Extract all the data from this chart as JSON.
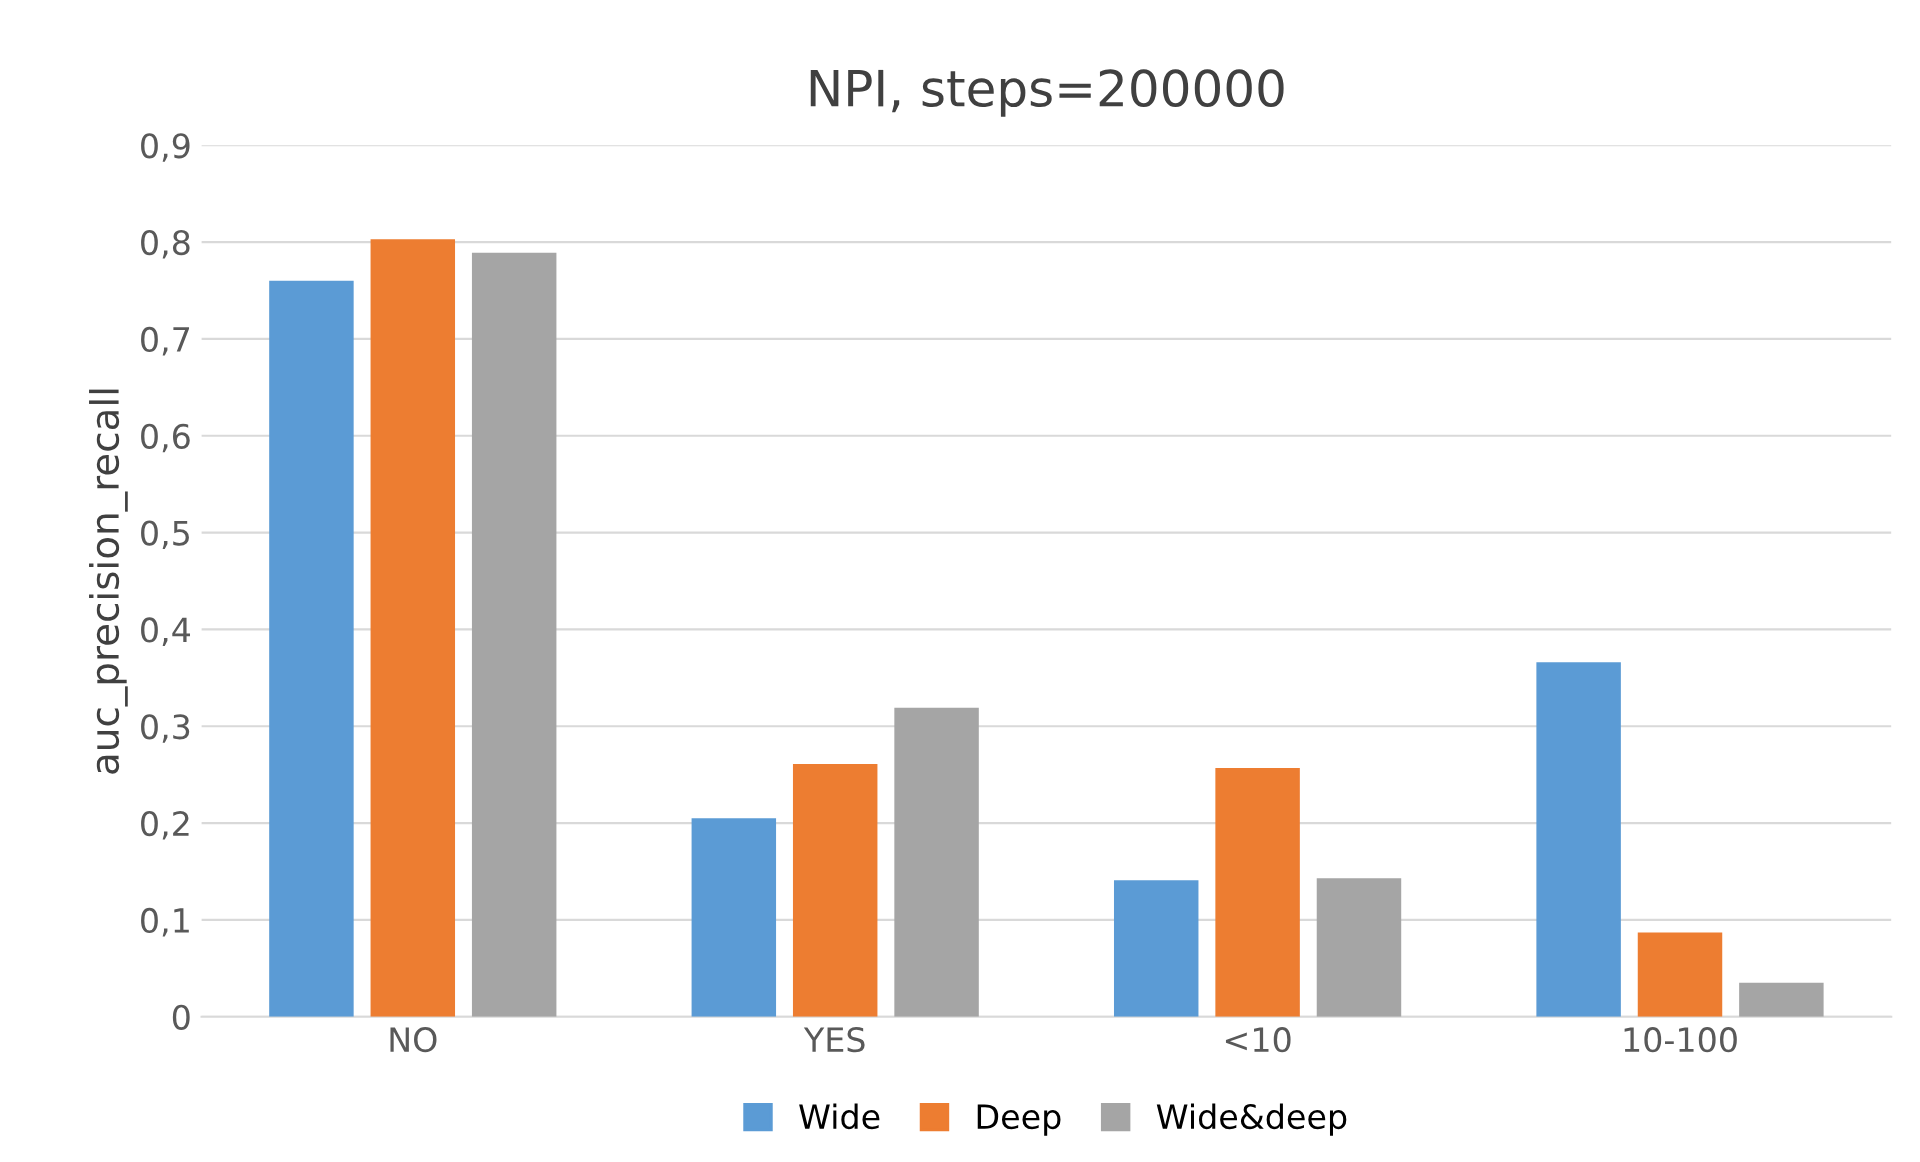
{
  "chart_data": {
    "type": "bar",
    "title": "NPI, steps=200000",
    "ylabel": "auc_precision_recall",
    "categories": [
      "NO",
      "YES",
      "<10",
      "10-100"
    ],
    "series": [
      {
        "name": "Wide",
        "color": "#5b9bd5",
        "values": [
          0.76,
          0.205,
          0.141,
          0.366
        ]
      },
      {
        "name": "Deep",
        "color": "#ed7d31",
        "values": [
          0.803,
          0.261,
          0.257,
          0.087
        ]
      },
      {
        "name": "Wide&deep",
        "color": "#a5a5a5",
        "values": [
          0.789,
          0.319,
          0.143,
          0.035
        ]
      }
    ],
    "ylim": [
      0,
      0.9
    ],
    "yticks": [
      0,
      {
        "value": 0.1,
        "label": "0,1"
      },
      {
        "value": 0.2,
        "label": "0,2"
      },
      {
        "value": 0.3,
        "label": "0,3"
      },
      {
        "value": 0.4,
        "label": "0,4"
      },
      {
        "value": 0.5,
        "label": "0,5"
      },
      {
        "value": 0.6,
        "label": "0,6"
      },
      {
        "value": 0.7,
        "label": "0,7"
      },
      {
        "value": 0.8,
        "label": "0,8"
      },
      {
        "value": 0.9,
        "label": "0,9"
      }
    ],
    "grid": "y",
    "legend": "bottom"
  }
}
